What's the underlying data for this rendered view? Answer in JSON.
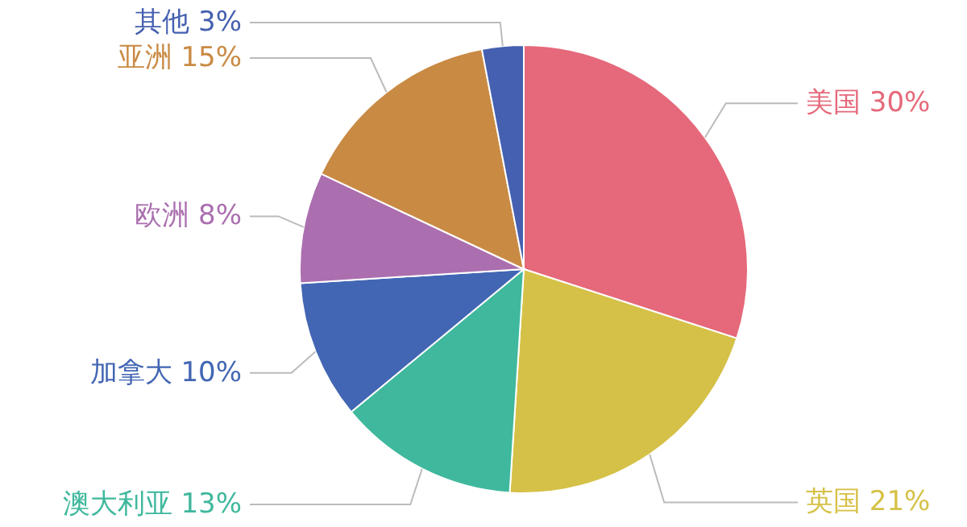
{
  "chart_data": {
    "type": "pie",
    "categories": [
      "美国",
      "英国",
      "澳大利亚",
      "加拿大",
      "欧洲",
      "亚洲",
      "其他"
    ],
    "values": [
      30,
      21,
      13,
      10,
      8,
      15,
      3
    ],
    "value_labels": [
      "30%",
      "21%",
      "13%",
      "10%",
      "8%",
      "15%",
      "3%"
    ],
    "colors": [
      "#e5697a",
      "#d5c147",
      "#3fb89d",
      "#4266b3",
      "#ab6faf",
      "#c98a44",
      "#4560b0"
    ]
  }
}
